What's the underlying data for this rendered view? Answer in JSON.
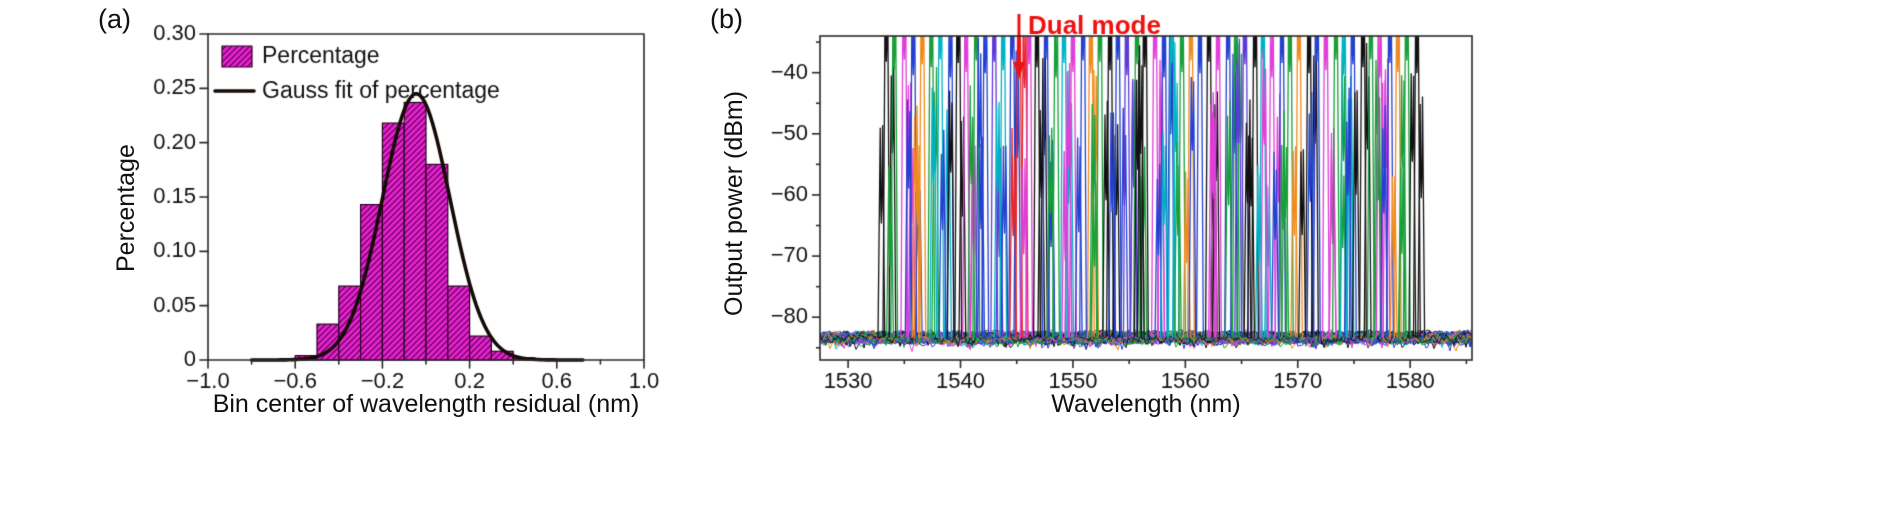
{
  "figure": {
    "panel_a_label": "(a)",
    "panel_b_label": "(b)",
    "background_color": "#ffffff"
  },
  "chart_data": [
    {
      "id": "wavelength-residual-histogram",
      "type": "bar",
      "title": "",
      "xlabel": "Bin center of wavelength residual (nm)",
      "ylabel": "Percentage",
      "xlim": [
        -1.0,
        1.0
      ],
      "ylim": [
        0,
        0.3
      ],
      "grid": false,
      "legend_position": "top-left",
      "xticks": [
        -1.0,
        -0.6,
        -0.2,
        0.2,
        0.6,
        1.0
      ],
      "xtick_labels": [
        "−1.0",
        "−0.6",
        "−0.2",
        "0.2",
        "0.6",
        "1.0"
      ],
      "xtick_minor": [
        -0.8,
        -0.4,
        0.0,
        0.4,
        0.8
      ],
      "yticks": [
        0,
        0.05,
        0.1,
        0.15,
        0.2,
        0.25,
        0.3
      ],
      "ytick_labels": [
        "0",
        "0.05",
        "0.10",
        "0.15",
        "0.20",
        "0.25",
        "0.30"
      ],
      "bin_width": 0.1,
      "bin_centers": [
        -0.55,
        -0.45,
        -0.35,
        -0.25,
        -0.15,
        -0.05,
        0.05,
        0.15,
        0.25,
        0.35,
        0.45,
        0.55
      ],
      "values": [
        0.004,
        0.033,
        0.068,
        0.143,
        0.218,
        0.237,
        0.18,
        0.068,
        0.022,
        0.008,
        0.002,
        0.001
      ],
      "bar_color": "#e524ce",
      "bar_hatch_color": "#6e0062",
      "bar_edge_color": "#24001f",
      "gauss_fit": {
        "amplitude": 0.245,
        "mean": -0.045,
        "sigma": 0.155,
        "color": "#140a06",
        "x_range": [
          -0.8,
          0.72
        ]
      },
      "legend": [
        {
          "label": "Percentage",
          "marker": "hatched-bar"
        },
        {
          "label": "Gauss fit of percentage",
          "marker": "line"
        }
      ]
    },
    {
      "id": "tunable-laser-spectra",
      "type": "line",
      "title": "",
      "xlabel": "Wavelength (nm)",
      "ylabel": "Output power (dBm)",
      "xlim": [
        1527.5,
        1585.5
      ],
      "ylim": [
        -87,
        -34
      ],
      "grid": false,
      "xticks": [
        1530,
        1540,
        1550,
        1560,
        1570,
        1580
      ],
      "xtick_labels": [
        "1530",
        "1540",
        "1550",
        "1560",
        "1570",
        "1580"
      ],
      "xtick_minor": [
        1535,
        1545,
        1555,
        1565,
        1575,
        1585
      ],
      "yticks": [
        -40,
        -50,
        -60,
        -70,
        -80
      ],
      "ytick_labels": [
        "−40",
        "−50",
        "−60",
        "−70",
        "−80"
      ],
      "ytick_minor": [
        -35,
        -45,
        -55,
        -65,
        -75,
        -85
      ],
      "noise_floor_dbm": -83.3,
      "noise_peak_to_peak_db": 3,
      "palette": [
        "#111111",
        "#2440cf",
        "#189f3a",
        "#e03fd8",
        "#e8282d",
        "#00b3c4",
        "#f08a1e",
        "#5b3bd6"
      ],
      "annotation": {
        "text": "Dual mode",
        "wavelength_nm": 1545.2,
        "color": "#ee1111"
      },
      "peaks_format": [
        "wavelength_nm",
        "peak_power_dbm",
        "palette_color_index",
        "dual_mode_flag"
      ],
      "peaks": [
        [
          1533.4,
          -38.2,
          0
        ],
        [
          1534.1,
          -39.6,
          2
        ],
        [
          1535.0,
          -37.9,
          3
        ],
        [
          1535.8,
          -40.4,
          1
        ],
        [
          1536.6,
          -38.6,
          6
        ],
        [
          1537.4,
          -39.1,
          2
        ],
        [
          1538.2,
          -37.8,
          5
        ],
        [
          1539.1,
          -40.8,
          1
        ],
        [
          1539.8,
          -38.4,
          0
        ],
        [
          1540.5,
          -39.9,
          3
        ],
        [
          1541.4,
          -38.0,
          2
        ],
        [
          1542.2,
          -40.1,
          1
        ],
        [
          1543.0,
          -38.2,
          7
        ],
        [
          1543.8,
          -39.6,
          5
        ],
        [
          1544.6,
          -37.9,
          1
        ],
        [
          1545.2,
          -41.0,
          4,
          1
        ],
        [
          1546.1,
          -38.6,
          3
        ],
        [
          1546.8,
          -39.1,
          0
        ],
        [
          1547.6,
          -37.8,
          1
        ],
        [
          1548.5,
          -40.8,
          2
        ],
        [
          1549.2,
          -38.4,
          5
        ],
        [
          1550.0,
          -39.9,
          3
        ],
        [
          1550.9,
          -38.0,
          1
        ],
        [
          1551.6,
          -40.1,
          6
        ],
        [
          1552.4,
          -38.2,
          2
        ],
        [
          1553.3,
          -39.6,
          0
        ],
        [
          1554.0,
          -37.9,
          1
        ],
        [
          1554.8,
          -40.4,
          7
        ],
        [
          1555.7,
          -38.6,
          2
        ],
        [
          1556.4,
          -39.1,
          0
        ],
        [
          1557.3,
          -37.8,
          3
        ],
        [
          1558.1,
          -40.8,
          1
        ],
        [
          1558.8,
          -38.4,
          5
        ],
        [
          1559.7,
          -39.9,
          2
        ],
        [
          1560.5,
          -38.0,
          6
        ],
        [
          1561.3,
          -40.1,
          1
        ],
        [
          1562.1,
          -38.2,
          0
        ],
        [
          1562.9,
          -39.6,
          3
        ],
        [
          1563.8,
          -37.9,
          1
        ],
        [
          1564.5,
          -40.4,
          2
        ],
        [
          1565.3,
          -38.6,
          7
        ],
        [
          1566.2,
          -39.1,
          0
        ],
        [
          1566.9,
          -37.8,
          5
        ],
        [
          1567.7,
          -40.8,
          3
        ],
        [
          1568.6,
          -38.4,
          1
        ],
        [
          1569.3,
          -39.9,
          2
        ],
        [
          1570.1,
          -38.0,
          6
        ],
        [
          1571.0,
          -40.1,
          0
        ],
        [
          1571.7,
          -38.2,
          1
        ],
        [
          1572.5,
          -39.6,
          3
        ],
        [
          1573.4,
          -37.9,
          2
        ],
        [
          1574.1,
          -40.4,
          5
        ],
        [
          1574.9,
          -38.6,
          1
        ],
        [
          1575.8,
          -39.1,
          0
        ],
        [
          1576.5,
          -37.8,
          2
        ],
        [
          1577.3,
          -40.8,
          3
        ],
        [
          1578.2,
          -38.4,
          1
        ],
        [
          1578.9,
          -39.9,
          6
        ],
        [
          1579.7,
          -38.0,
          2
        ],
        [
          1580.6,
          -40.1,
          0
        ]
      ]
    }
  ]
}
